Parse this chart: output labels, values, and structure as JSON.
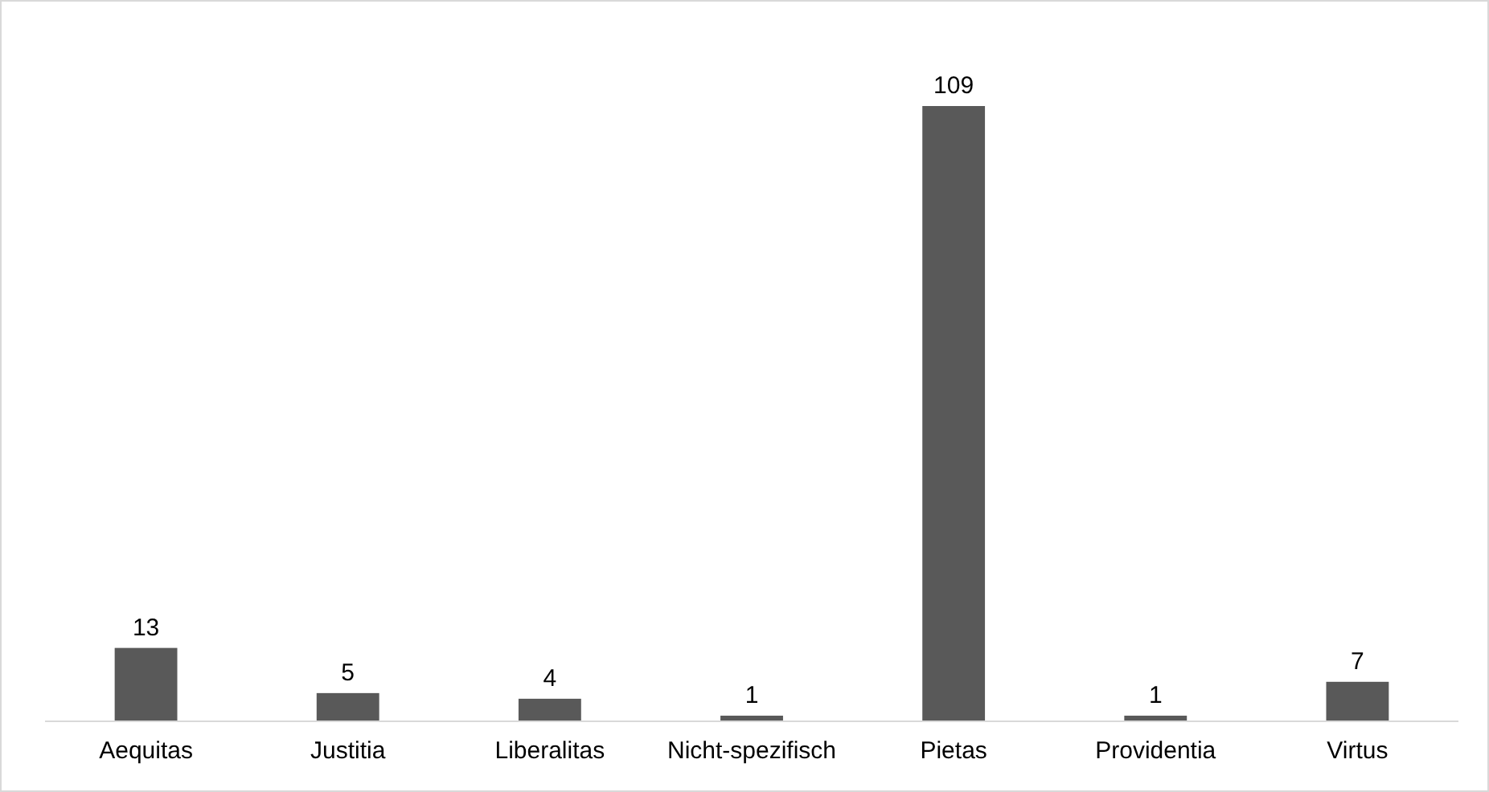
{
  "chart_data": {
    "type": "bar",
    "categories": [
      "Aequitas",
      "Justitia",
      "Liberalitas",
      "Nicht-spezifisch",
      "Pietas",
      "Providentia",
      "Virtus"
    ],
    "values": [
      13,
      5,
      4,
      1,
      109,
      1,
      7
    ],
    "color": "#595959",
    "data_labels": true
  }
}
